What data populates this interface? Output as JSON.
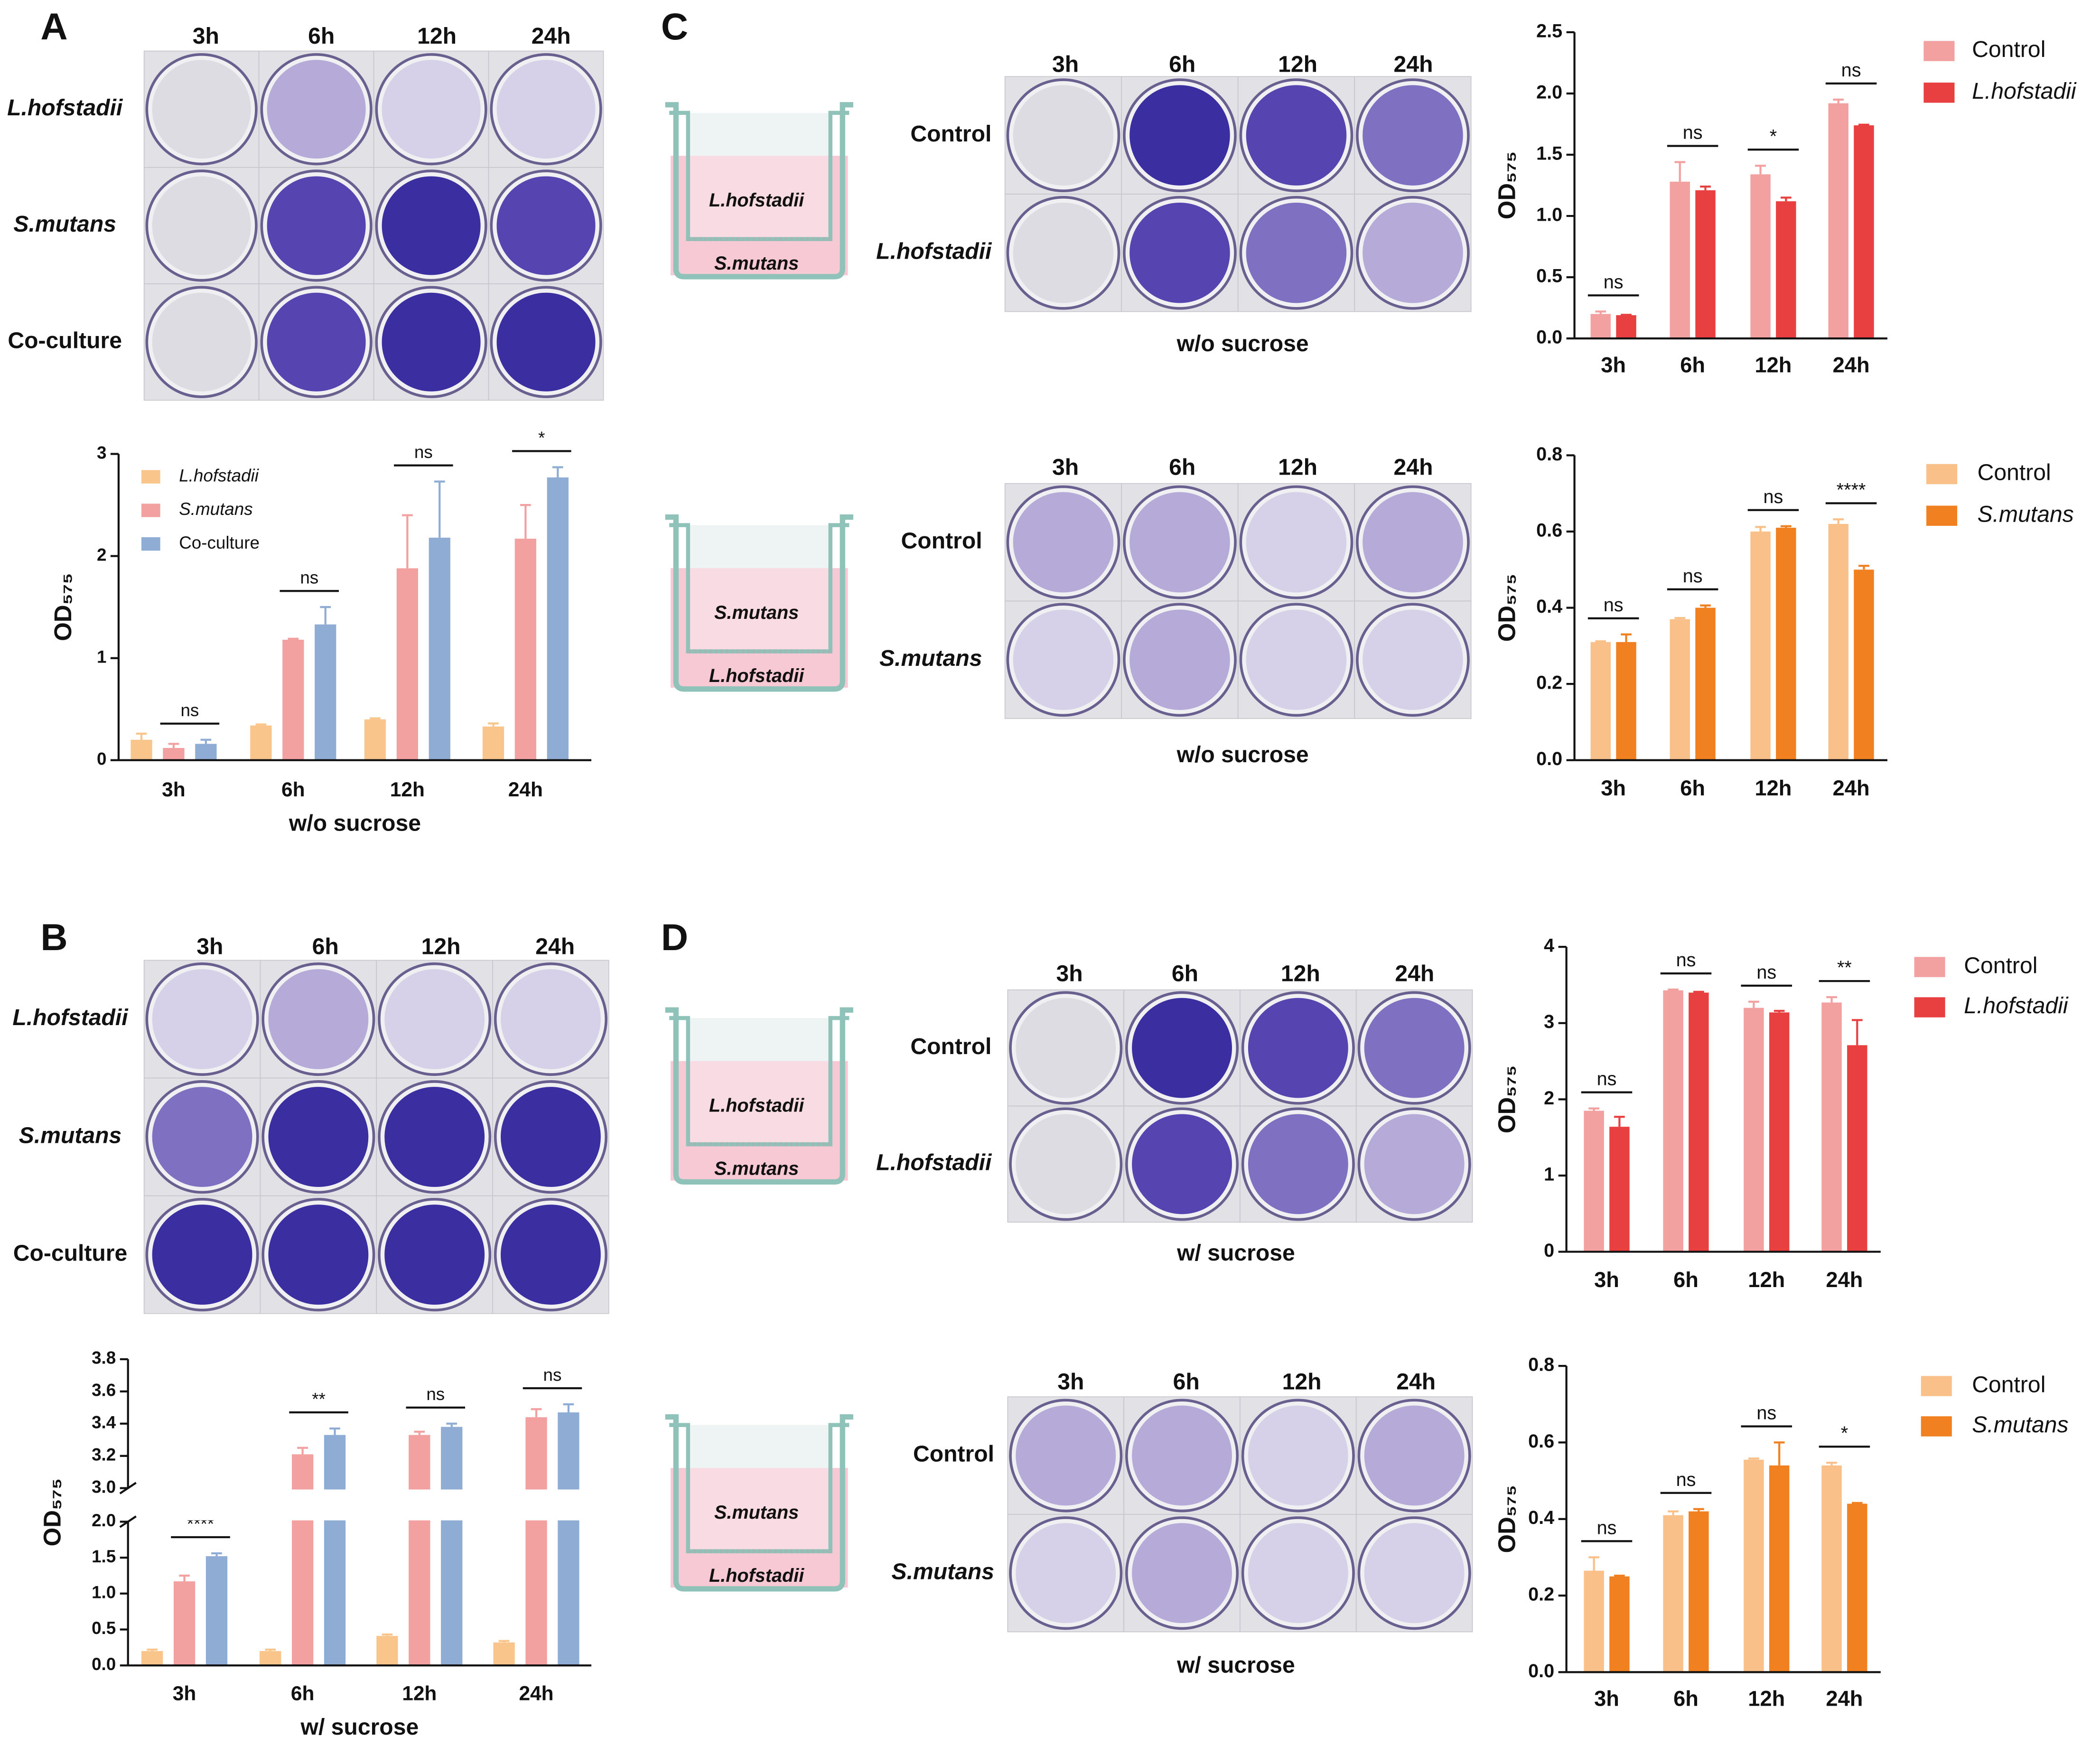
{
  "panel_letters": [
    "A",
    "B",
    "C",
    "D"
  ],
  "photo_panels": [
    {
      "columns": [
        "3h",
        "6h",
        "12h",
        "24h"
      ],
      "rows": [
        "L.hofstadii",
        "S.mutans",
        "Co-culture"
      ]
    },
    {
      "columns": [
        "3h",
        "6h",
        "12h",
        "24h"
      ],
      "rows": [
        "L.hofstadii",
        "S.mutans",
        "Co-culture"
      ]
    },
    {
      "columns": [
        "3h",
        "6h",
        "12h",
        "24h"
      ],
      "rows": [
        "Control",
        "L.hofstadii"
      ],
      "caption": "w/o sucrose",
      "insert_top": "L.hofstadii",
      "insert_bottom": "S.mutans"
    },
    {
      "columns": [
        "3h",
        "6h",
        "12h",
        "24h"
      ],
      "rows": [
        "Control",
        "S.mutans"
      ],
      "caption": "w/o sucrose",
      "insert_top": "S.mutans",
      "insert_bottom": "L.hofstadii"
    },
    {
      "columns": [
        "3h",
        "6h",
        "12h",
        "24h"
      ],
      "rows": [
        "Control",
        "L.hofstadii"
      ],
      "caption": "w/ sucrose",
      "insert_top": "L.hofstadii",
      "insert_bottom": "S.mutans"
    },
    {
      "columns": [
        "3h",
        "6h",
        "12h",
        "24h"
      ],
      "rows": [
        "Control",
        "S.mutans"
      ],
      "caption": "w/ sucrose",
      "insert_top": "S.mutans",
      "insert_bottom": "L.hofstadii"
    }
  ],
  "chart_data": [
    {
      "type": "bar",
      "categories": [
        "3h",
        "6h",
        "12h",
        "24h"
      ],
      "ylabel": "OD₅₇₅",
      "xlabel": "w/o sucrose",
      "ylim": [
        0,
        3
      ],
      "yticks": [
        0,
        1,
        2,
        3
      ],
      "series": [
        {
          "name": "L.hofstadii",
          "color": "#f9c58a",
          "values": [
            0.2,
            0.34,
            0.4,
            0.33
          ],
          "errors": [
            0.06,
            0.01,
            0.01,
            0.03
          ]
        },
        {
          "name": "S.mutans",
          "color": "#f2a0a0",
          "values": [
            0.12,
            1.18,
            1.88,
            2.17
          ],
          "errors": [
            0.04,
            0.01,
            0.52,
            0.33
          ]
        },
        {
          "name": "Co-culture",
          "color": "#8fadd4",
          "values": [
            0.16,
            1.33,
            2.18,
            2.77
          ],
          "errors": [
            0.04,
            0.17,
            0.55,
            0.1
          ]
        }
      ],
      "significance": [
        "ns",
        "ns",
        "ns",
        "*"
      ]
    },
    {
      "type": "bar",
      "categories": [
        "3h",
        "6h",
        "12h",
        "24h"
      ],
      "ylabel": "OD₅₇₅",
      "xlabel": "w/ sucrose",
      "ylim": [
        0,
        3.8
      ],
      "ybreak": [
        2,
        3
      ],
      "yticks": [
        {
          "value": 0,
          "label": "0.0"
        },
        0.5,
        {
          "value": 1,
          "label": "1.0"
        },
        1.5,
        {
          "value": 2,
          "label": "2.0"
        },
        {
          "value": 3,
          "label": "3.0"
        },
        3.2,
        3.4,
        3.6,
        3.8
      ],
      "series": [
        {
          "name": "L.hofstadii",
          "color": "#f9c58a",
          "values": [
            0.2,
            0.2,
            0.41,
            0.32
          ],
          "errors": [
            0.02,
            0.02,
            0.02,
            0.02
          ]
        },
        {
          "name": "S.mutans",
          "color": "#f2a0a0",
          "values": [
            1.17,
            3.21,
            3.33,
            3.44
          ],
          "errors": [
            0.08,
            0.04,
            0.02,
            0.05
          ]
        },
        {
          "name": "Co-culture",
          "color": "#8fadd4",
          "values": [
            1.52,
            3.33,
            3.38,
            3.47
          ],
          "errors": [
            0.04,
            0.04,
            0.02,
            0.05
          ]
        }
      ],
      "significance": [
        "****",
        "**",
        "ns",
        "ns"
      ]
    },
    {
      "type": "bar",
      "categories": [
        "3h",
        "6h",
        "12h",
        "24h"
      ],
      "ylabel": "OD₅₇₅",
      "ylim": [
        0,
        2.5
      ],
      "yticks": [
        {
          "value": 0,
          "label": "0.0"
        },
        0.5,
        {
          "value": 1,
          "label": "1.0"
        },
        1.5,
        {
          "value": 2,
          "label": "2.0"
        },
        2.5
      ],
      "series": [
        {
          "name": "Control",
          "color": "#f2a0a0",
          "values": [
            0.2,
            1.28,
            1.34,
            1.92
          ],
          "errors": [
            0.02,
            0.16,
            0.07,
            0.03
          ]
        },
        {
          "name": "L.hofstadii",
          "color": "#e84040",
          "values": [
            0.19,
            1.21,
            1.12,
            1.74
          ],
          "errors": [
            0.003,
            0.03,
            0.03,
            0.005
          ]
        }
      ],
      "significance": [
        "ns",
        "ns",
        "*",
        "ns"
      ]
    },
    {
      "type": "bar",
      "categories": [
        "3h",
        "6h",
        "12h",
        "24h"
      ],
      "ylabel": "OD₅₇₅",
      "ylim": [
        0,
        0.8
      ],
      "yticks": [
        {
          "value": 0,
          "label": "0.0"
        },
        0.2,
        0.4,
        0.6,
        0.8
      ],
      "series": [
        {
          "name": "Control",
          "color": "#f9c08a",
          "values": [
            0.31,
            0.37,
            0.6,
            0.62
          ],
          "errors": [
            0.002,
            0.003,
            0.012,
            0.012
          ]
        },
        {
          "name": "S.mutans",
          "color": "#f08020",
          "values": [
            0.31,
            0.4,
            0.61,
            0.5
          ],
          "errors": [
            0.02,
            0.006,
            0.004,
            0.01
          ]
        }
      ],
      "significance": [
        "ns",
        "ns",
        "ns",
        "****"
      ]
    },
    {
      "type": "bar",
      "categories": [
        "3h",
        "6h",
        "12h",
        "24h"
      ],
      "ylabel": "OD₅₇₅",
      "ylim": [
        0,
        4
      ],
      "yticks": [
        0,
        1,
        2,
        3,
        4
      ],
      "series": [
        {
          "name": "Control",
          "color": "#f2a0a0",
          "values": [
            1.85,
            3.43,
            3.2,
            3.27
          ],
          "errors": [
            0.03,
            0.01,
            0.08,
            0.07
          ]
        },
        {
          "name": "L.hofstadii",
          "color": "#e84040",
          "values": [
            1.64,
            3.4,
            3.14,
            2.71
          ],
          "errors": [
            0.13,
            0.01,
            0.02,
            0.33
          ]
        }
      ],
      "significance": [
        "ns",
        "ns",
        "ns",
        "**"
      ]
    },
    {
      "type": "bar",
      "categories": [
        "3h",
        "6h",
        "12h",
        "24h"
      ],
      "ylabel": "OD₅₇₅",
      "ylim": [
        0,
        0.8
      ],
      "yticks": [
        {
          "value": 0,
          "label": "0.0"
        },
        0.2,
        0.4,
        0.6,
        0.8
      ],
      "series": [
        {
          "name": "Control",
          "color": "#f9c08a",
          "values": [
            0.265,
            0.41,
            0.555,
            0.54
          ],
          "errors": [
            0.035,
            0.01,
            0.003,
            0.007
          ]
        },
        {
          "name": "S.mutans",
          "color": "#f08020",
          "values": [
            0.25,
            0.42,
            0.54,
            0.44
          ],
          "errors": [
            0.002,
            0.006,
            0.06,
            0.002
          ]
        }
      ],
      "significance": [
        "ns",
        "ns",
        "ns",
        "*"
      ]
    }
  ]
}
